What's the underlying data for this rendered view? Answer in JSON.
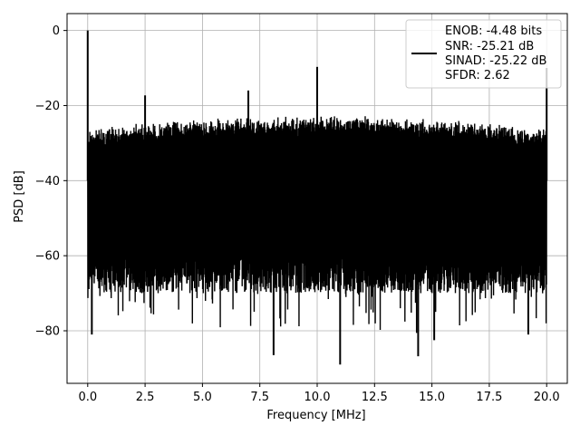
{
  "chart_data": {
    "type": "line",
    "title": "",
    "xlabel": "Frequency [MHz]",
    "ylabel": "PSD [dB]",
    "xlim": [
      -0.9,
      20.9
    ],
    "ylim": [
      -94,
      4.5
    ],
    "xticks": [
      0.0,
      2.5,
      5.0,
      7.5,
      10.0,
      12.5,
      15.0,
      17.5,
      20.0
    ],
    "xtick_labels": [
      "0.0",
      "2.5",
      "5.0",
      "7.5",
      "10.0",
      "12.5",
      "15.0",
      "17.5",
      "20.0"
    ],
    "yticks": [
      0,
      -20,
      -40,
      -60,
      -80
    ],
    "ytick_labels": [
      "0",
      "−20",
      "−40",
      "−60",
      "−80"
    ],
    "grid": true,
    "legend_position": "top-right",
    "legend_entries": [
      "ENOB: -4.48 bits",
      "SNR: -25.21 dB",
      "SINAD: -25.22 dB",
      "SFDR: 2.62"
    ],
    "series": [
      {
        "color": "#000000",
        "x_range": [
          0.0,
          20.0
        ],
        "noise_band": {
          "upper_envelope": [
            -26,
            -22.5
          ],
          "typical_floor": -65,
          "deepest": -89
        },
        "peaks": [
          {
            "x": 0.0,
            "y": 0.0
          },
          {
            "x": 2.5,
            "y": -17.3
          },
          {
            "x": 7.0,
            "y": -16.0
          },
          {
            "x": 10.0,
            "y": -9.7
          },
          {
            "x": 20.0,
            "y": -10.0
          }
        ],
        "dips": [
          {
            "x": 0.18,
            "y": -81.0
          },
          {
            "x": 8.1,
            "y": -86.5
          },
          {
            "x": 11.0,
            "y": -89.0
          },
          {
            "x": 14.4,
            "y": -86.8
          },
          {
            "x": 15.1,
            "y": -82.5
          },
          {
            "x": 19.2,
            "y": -81.0
          }
        ]
      }
    ]
  }
}
